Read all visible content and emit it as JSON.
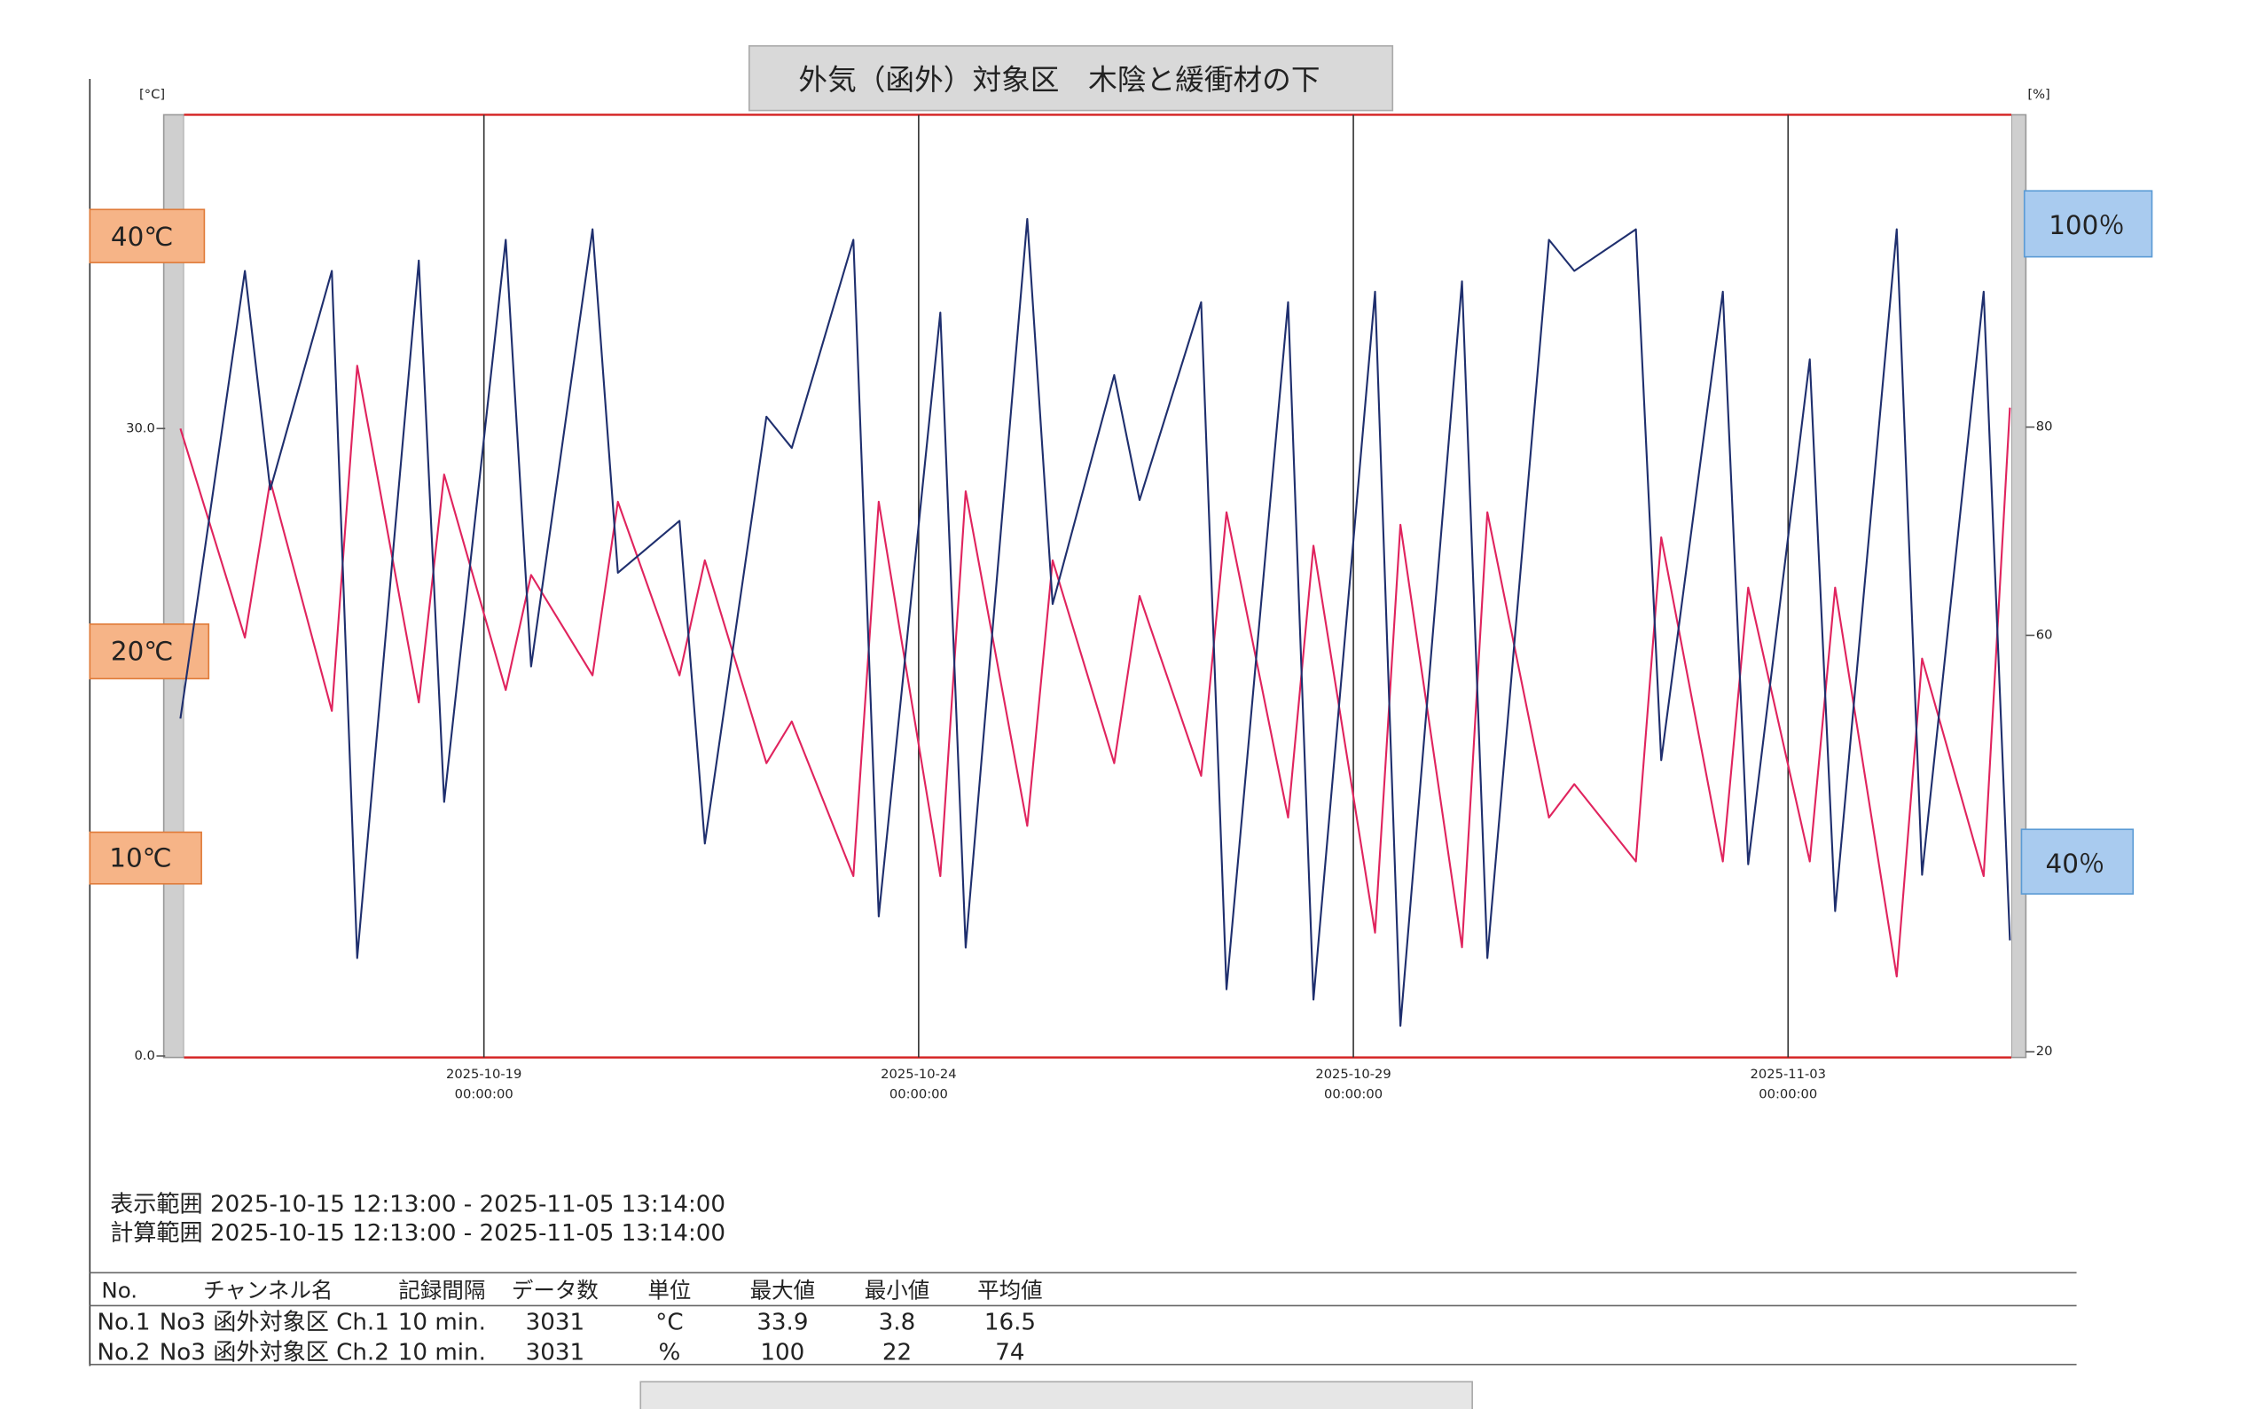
{
  "chart_data": {
    "type": "line",
    "title": "外気（函外）対象区　木陰と緩衝材の下",
    "y_unit": "[°C]",
    "y2_unit": "[%]",
    "x": [
      "2025-10-15 12:13:00",
      "2025-10-16 06:00:00",
      "2025-10-16 13:00:00",
      "2025-10-17 06:00:00",
      "2025-10-17 13:00:00",
      "2025-10-18 06:00:00",
      "2025-10-18 13:00:00",
      "2025-10-19 06:00:00",
      "2025-10-19 13:00:00",
      "2025-10-20 06:00:00",
      "2025-10-20 13:00:00",
      "2025-10-21 06:00:00",
      "2025-10-21 13:00:00",
      "2025-10-22 06:00:00",
      "2025-10-22 13:00:00",
      "2025-10-23 06:00:00",
      "2025-10-23 13:00:00",
      "2025-10-24 06:00:00",
      "2025-10-24 13:00:00",
      "2025-10-25 06:00:00",
      "2025-10-25 13:00:00",
      "2025-10-26 06:00:00",
      "2025-10-26 13:00:00",
      "2025-10-27 06:00:00",
      "2025-10-27 13:00:00",
      "2025-10-28 06:00:00",
      "2025-10-28 13:00:00",
      "2025-10-29 06:00:00",
      "2025-10-29 13:00:00",
      "2025-10-30 06:00:00",
      "2025-10-30 13:00:00",
      "2025-10-31 06:00:00",
      "2025-10-31 13:00:00",
      "2025-11-01 06:00:00",
      "2025-11-01 13:00:00",
      "2025-11-02 06:00:00",
      "2025-11-02 13:00:00",
      "2025-11-03 06:00:00",
      "2025-11-03 13:00:00",
      "2025-11-04 06:00:00",
      "2025-11-04 13:00:00",
      "2025-11-05 06:00:00",
      "2025-11-05 13:14:00"
    ],
    "series": [
      {
        "color": "#e0245e",
        "values": [
          30,
          20,
          27.5,
          16.5,
          33,
          16.9,
          27.8,
          17.5,
          23,
          18.2,
          26.5,
          18.2,
          23.7,
          14,
          16,
          8.6,
          26.5,
          8.6,
          27,
          11,
          23.7,
          14,
          22,
          13.4,
          26,
          11.4,
          24.4,
          5.9,
          25.4,
          5.2,
          26,
          11.4,
          13,
          9.3,
          24.8,
          9.3,
          22.4,
          9.3,
          22.4,
          3.8,
          19,
          8.6,
          31
        ]
      },
      {
        "color": "#1f2f6e",
        "axis": "y2",
        "values": [
          52,
          95,
          74,
          95,
          29,
          96,
          44,
          98,
          57,
          99,
          66,
          71,
          40,
          81,
          78,
          98,
          33,
          91,
          30,
          100,
          63,
          85,
          73,
          92,
          26,
          92,
          25,
          93,
          22.5,
          94,
          29,
          98,
          95,
          99,
          48,
          93,
          38,
          86.5,
          33.5,
          99,
          37,
          93,
          30.7
        ]
      }
    ],
    "xlim": [
      "2025-10-15 12:13:00",
      "2025-11-05 13:14:00"
    ],
    "xticks": [
      {
        "value": "2025-10-19 00:00:00",
        "label": [
          "2025-10-19",
          "00:00:00"
        ]
      },
      {
        "value": "2025-10-24 00:00:00",
        "label": [
          "2025-10-24",
          "00:00:00"
        ]
      },
      {
        "value": "2025-10-29 00:00:00",
        "label": [
          "2025-10-29",
          "00:00:00"
        ]
      },
      {
        "value": "2025-11-03 00:00:00",
        "label": [
          "2025-11-03",
          "00:00:00"
        ]
      }
    ],
    "ylim": [
      0,
      45
    ],
    "yticks": [
      {
        "value": 0,
        "label": "0.0"
      },
      {
        "value": 30,
        "label": "30.0"
      }
    ],
    "y2lim": [
      20,
      110
    ],
    "y2ticks": [
      20,
      60,
      80
    ],
    "grid": true,
    "annotations": [
      "40℃",
      "20℃",
      "10℃",
      "100％",
      "40％"
    ]
  },
  "info": [
    "表示範囲 2025-10-15 12:13:00 - 2025-11-05 13:14:00",
    "計算範囲 2025-10-15 12:13:00 - 2025-11-05 13:14:00"
  ],
  "table": {
    "header": [
      "No.",
      "チャンネル名",
      "記録間隔",
      "データ数",
      "単位",
      "最大値",
      "最小値",
      "平均値"
    ],
    "rows": [
      [
        "No.1",
        "No3 函外対象区 Ch.1",
        "10 min.",
        3031,
        "°C",
        33.9,
        3.8,
        16.5
      ],
      [
        "No.2",
        "No3 函外対象区 Ch.2",
        "10 min.",
        3031,
        "%",
        100,
        22,
        74
      ]
    ]
  }
}
